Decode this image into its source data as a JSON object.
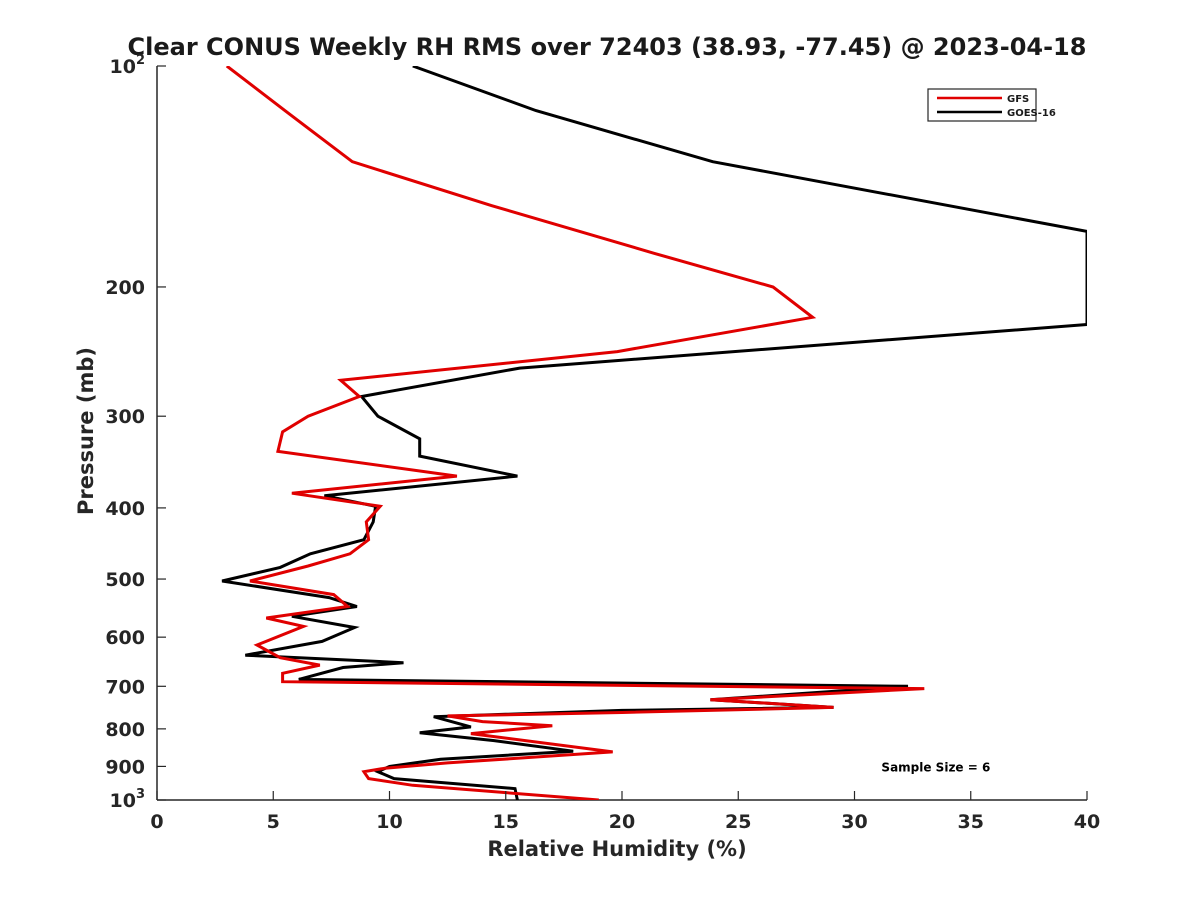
{
  "chart_data": {
    "type": "line",
    "title": "Clear CONUS Weekly RH RMS over 72403 (38.93, -77.45) @ 2023-04-18",
    "xlabel": "Relative Humidity (%)",
    "ylabel": "Pressure (mb)",
    "xlim": [
      0,
      40
    ],
    "ylim": [
      100,
      1000
    ],
    "yscale": "log",
    "y_reversed": true,
    "x_ticks": [
      0,
      5,
      10,
      15,
      20,
      25,
      30,
      35,
      40
    ],
    "y_ticks": [
      {
        "value": 100,
        "base": "10",
        "exp": "2"
      },
      {
        "value": 200,
        "label": "200"
      },
      {
        "value": 300,
        "label": "300"
      },
      {
        "value": 400,
        "label": "400"
      },
      {
        "value": 500,
        "label": "500"
      },
      {
        "value": 600,
        "label": "600"
      },
      {
        "value": 700,
        "label": "700"
      },
      {
        "value": 800,
        "label": "800"
      },
      {
        "value": 900,
        "label": "900"
      },
      {
        "value": 1000,
        "base": "10",
        "exp": "3"
      }
    ],
    "grid": false,
    "legend_position": "top-right",
    "series": [
      {
        "name": "GFS",
        "color": "#e00000",
        "points": [
          [
            3.0,
            100
          ],
          [
            5.5,
            115
          ],
          [
            8.4,
            135
          ],
          [
            14.4,
            155
          ],
          [
            21.4,
            180
          ],
          [
            26.5,
            200
          ],
          [
            28.2,
            220
          ],
          [
            19.8,
            245
          ],
          [
            7.9,
            268
          ],
          [
            8.7,
            282
          ],
          [
            6.5,
            300
          ],
          [
            5.4,
            315
          ],
          [
            5.2,
            335
          ],
          [
            12.9,
            362
          ],
          [
            5.8,
            382
          ],
          [
            9.6,
            398
          ],
          [
            9.0,
            418
          ],
          [
            9.1,
            442
          ],
          [
            8.3,
            462
          ],
          [
            6.5,
            480
          ],
          [
            4.0,
            503
          ],
          [
            7.6,
            525
          ],
          [
            8.2,
            545
          ],
          [
            4.7,
            565
          ],
          [
            6.3,
            580
          ],
          [
            4.3,
            615
          ],
          [
            5.3,
            640
          ],
          [
            7.0,
            655
          ],
          [
            5.4,
            672
          ],
          [
            5.4,
            690
          ],
          [
            33.0,
            705
          ],
          [
            23.8,
            730
          ],
          [
            29.1,
            748
          ],
          [
            20.0,
            760
          ],
          [
            12.5,
            768
          ],
          [
            14.0,
            782
          ],
          [
            17.0,
            792
          ],
          [
            13.5,
            812
          ],
          [
            19.6,
            860
          ],
          [
            12.5,
            890
          ],
          [
            9.8,
            905
          ],
          [
            8.9,
            915
          ],
          [
            9.1,
            935
          ],
          [
            11.0,
            955
          ],
          [
            19.0,
            1000
          ]
        ]
      },
      {
        "name": "GOES-16",
        "color": "#000000",
        "points": [
          [
            11.0,
            100
          ],
          [
            16.3,
            115
          ],
          [
            23.9,
            135
          ],
          [
            40.0,
            168
          ],
          [
            40.0,
            225
          ],
          [
            15.6,
            258
          ],
          [
            8.8,
            282
          ],
          [
            9.5,
            300
          ],
          [
            11.3,
            322
          ],
          [
            11.3,
            340
          ],
          [
            15.5,
            362
          ],
          [
            7.2,
            385
          ],
          [
            9.4,
            398
          ],
          [
            9.3,
            418
          ],
          [
            8.9,
            442
          ],
          [
            6.6,
            462
          ],
          [
            5.3,
            482
          ],
          [
            2.8,
            503
          ],
          [
            7.4,
            530
          ],
          [
            8.6,
            545
          ],
          [
            5.8,
            562
          ],
          [
            8.5,
            582
          ],
          [
            7.1,
            608
          ],
          [
            3.8,
            635
          ],
          [
            10.6,
            650
          ],
          [
            8.0,
            660
          ],
          [
            6.1,
            685
          ],
          [
            32.3,
            700
          ],
          [
            23.8,
            730
          ],
          [
            29.1,
            748
          ],
          [
            20.0,
            755
          ],
          [
            11.9,
            770
          ],
          [
            13.5,
            795
          ],
          [
            11.3,
            810
          ],
          [
            14.5,
            830
          ],
          [
            17.9,
            858
          ],
          [
            12.2,
            880
          ],
          [
            10.0,
            900
          ],
          [
            9.5,
            915
          ],
          [
            10.2,
            935
          ],
          [
            15.4,
            965
          ],
          [
            15.5,
            1000
          ]
        ]
      }
    ],
    "annotations": [
      {
        "text": "Sample Size = 6",
        "x": 33.5,
        "y": 900
      }
    ]
  }
}
